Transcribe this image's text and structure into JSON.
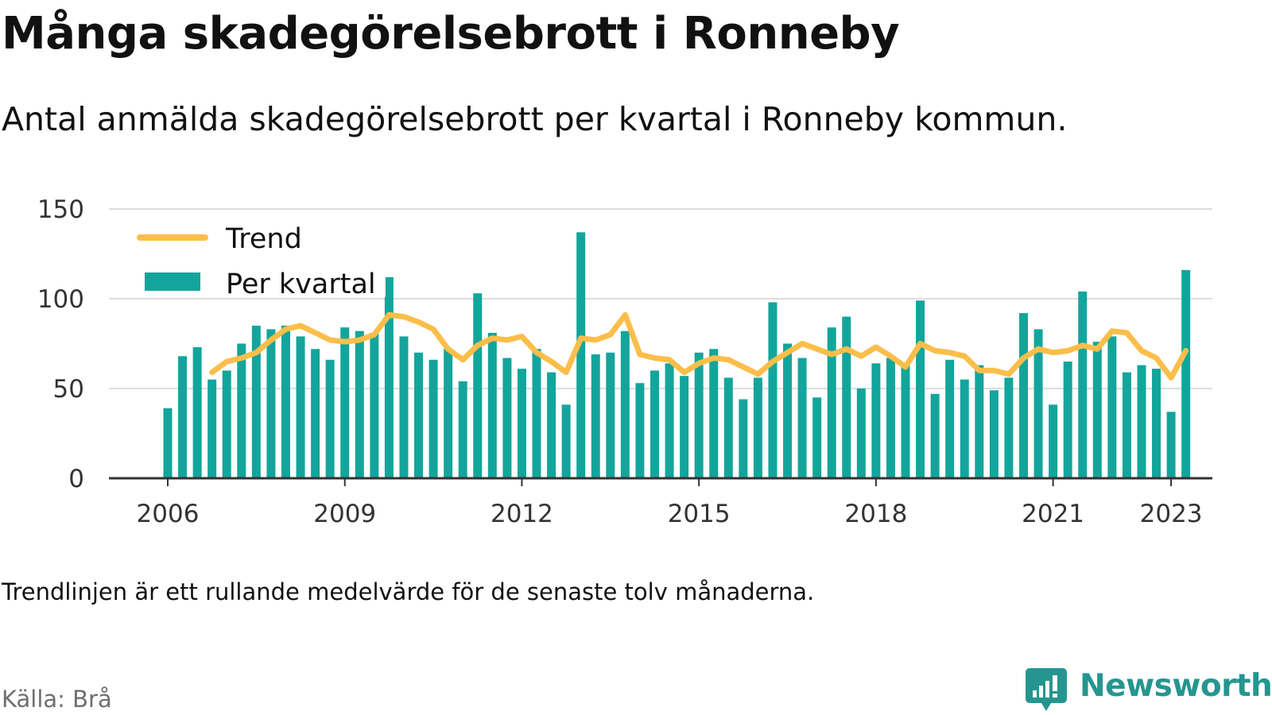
{
  "chart_data": {
    "type": "bar",
    "title": "Många skadegörelsebrott i Ronneby",
    "subtitle": "Antal anmälda skadegörelsebrott per kvartal i Ronneby kommun.",
    "note": "Trendlinjen är ett rullande medelvärde för de senaste tolv månaderna.",
    "source": "Källa: Brå",
    "brand": "Newsworthy",
    "ylim": [
      0,
      150
    ],
    "yticks": [
      0,
      50,
      100,
      150
    ],
    "xticks": [
      "2006",
      "2009",
      "2012",
      "2015",
      "2018",
      "2021",
      "2023"
    ],
    "xtick_quarter_index": [
      0,
      12,
      24,
      36,
      48,
      60,
      68
    ],
    "grid": true,
    "legend_position": "top-left",
    "colors": {
      "bars": "#13a59b",
      "trend": "#fbbe4a",
      "axis": "#333333",
      "grid": "#dddddd",
      "brand": "#25968f"
    },
    "series": [
      {
        "name": "Per kvartal",
        "type": "bar",
        "values": [
          39,
          68,
          73,
          55,
          60,
          75,
          85,
          83,
          85,
          79,
          72,
          66,
          84,
          82,
          81,
          112,
          79,
          70,
          66,
          72,
          54,
          103,
          81,
          67,
          61,
          72,
          59,
          41,
          137,
          69,
          70,
          82,
          53,
          60,
          64,
          57,
          70,
          72,
          56,
          44,
          56,
          98,
          75,
          67,
          45,
          84,
          90,
          50,
          64,
          67,
          63,
          99,
          47,
          66,
          55,
          63,
          49,
          56,
          92,
          83,
          41,
          65,
          104,
          76,
          79,
          59,
          63,
          61,
          37,
          116
        ]
      },
      {
        "name": "Trend",
        "type": "line",
        "start_index": 3,
        "values": [
          59,
          65,
          67,
          70,
          77,
          83,
          85,
          81,
          77,
          76,
          77,
          80,
          91,
          90,
          87,
          83,
          72,
          66,
          74,
          78,
          77,
          79,
          70,
          65,
          59,
          78,
          77,
          80,
          91,
          69,
          67,
          66,
          59,
          64,
          67,
          66,
          62,
          58,
          65,
          70,
          75,
          72,
          69,
          72,
          68,
          73,
          68,
          62,
          75,
          71,
          70,
          68,
          60,
          60,
          58,
          67,
          72,
          70,
          71,
          74,
          72,
          82,
          81,
          71,
          67,
          56,
          71
        ]
      }
    ]
  }
}
